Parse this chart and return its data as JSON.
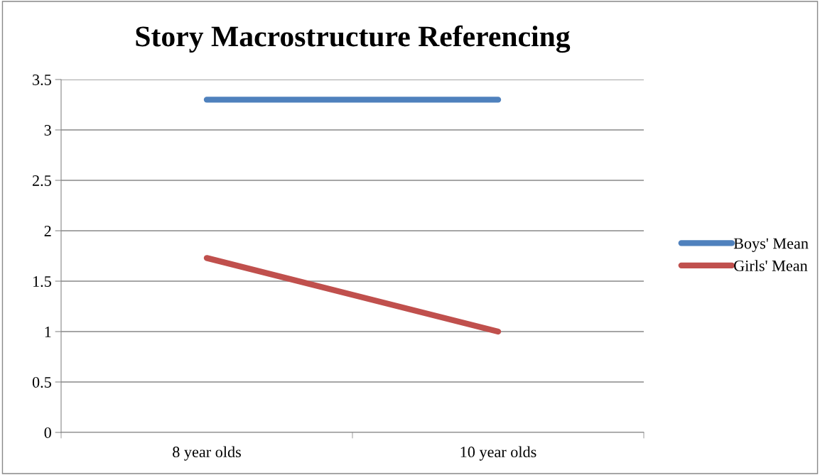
{
  "chart_data": {
    "type": "line",
    "title": "Story Macrostructure Referencing",
    "categories": [
      "8 year olds",
      "10 year olds"
    ],
    "series": [
      {
        "name": "Boys' Mean",
        "color": "#4f81bd",
        "values": [
          3.3,
          3.3
        ]
      },
      {
        "name": "Girls' Mean",
        "color": "#c0504d",
        "values": [
          1.73,
          1.0
        ]
      }
    ],
    "ylim": [
      0,
      3.5
    ],
    "yticks": [
      0,
      0.5,
      1,
      1.5,
      2,
      2.5,
      3,
      3.5
    ],
    "grid": "y",
    "legend": "right",
    "marker": "none",
    "line_style": "solid"
  }
}
